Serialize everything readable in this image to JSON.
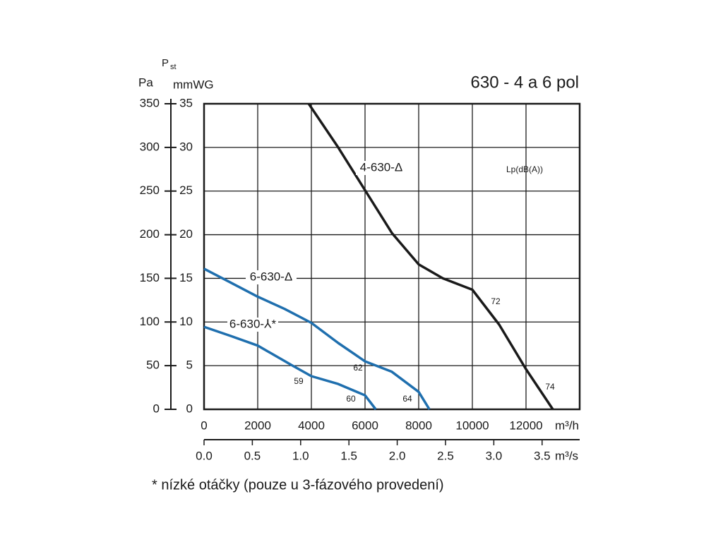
{
  "chart_data": {
    "type": "line",
    "title": "630 - 4 a 6 pol",
    "y_label": {
      "symbol": "P",
      "subscript": "st"
    },
    "y_unit": "mmWG",
    "y2_unit": "Pa",
    "x_unit": "m³/h",
    "x2_unit": "m³/s",
    "footnote": "* nízké otáčky (pouze u 3-fázového provedení)",
    "xlim": [
      0,
      14000
    ],
    "xticks": [
      0,
      2000,
      4000,
      6000,
      8000,
      10000,
      12000
    ],
    "x2lim": [
      0,
      3.889
    ],
    "x2ticks": [
      {
        "value": 0,
        "label": "0.0"
      },
      0.5,
      {
        "value": 1,
        "label": "1.0"
      },
      1.5,
      {
        "value": 2,
        "label": "2.0"
      },
      2.5,
      {
        "value": 3,
        "label": "3.0"
      },
      3.5
    ],
    "ylim": [
      0,
      35
    ],
    "yticks": [
      0,
      5,
      10,
      15,
      20,
      25,
      30,
      35
    ],
    "y2lim": [
      0,
      350
    ],
    "y2ticks": [
      0,
      50,
      100,
      150,
      200,
      250,
      300,
      350
    ],
    "grid": true,
    "series": [
      {
        "name": "4-630-Δ",
        "color": "#1a1a1a",
        "x": [
          3900,
          5000,
          6000,
          7000,
          8000,
          8900,
          10000,
          11000,
          12000,
          13000
        ],
        "values": [
          35,
          30,
          25.1,
          20.2,
          16.6,
          15,
          13.7,
          9.7,
          4.6,
          0
        ]
      },
      {
        "name": "6-630-Δ",
        "color": "#1f6fae",
        "x": [
          0,
          1000,
          2000,
          3000,
          4000,
          5000,
          6000,
          7000,
          8000,
          8400
        ],
        "values": [
          16.1,
          14.5,
          12.9,
          11.5,
          9.9,
          7.6,
          5.5,
          4.3,
          2.0,
          0
        ]
      },
      {
        "name": "6-630-⅄*",
        "color": "#1f6fae",
        "x": [
          0,
          1000,
          2000,
          3300,
          4000,
          5000,
          6000,
          6400
        ],
        "values": [
          9.45,
          8.4,
          7.3,
          5.0,
          3.8,
          2.9,
          1.6,
          0
        ]
      }
    ],
    "annotations": [
      "Lp(dB(A))",
      "72",
      "74",
      "62",
      "64",
      "59",
      "60"
    ]
  }
}
